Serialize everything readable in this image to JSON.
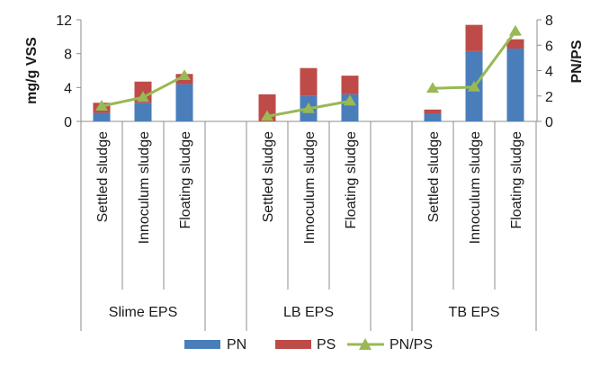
{
  "chart_data": {
    "type": "bar",
    "stacked": true,
    "groups": [
      {
        "label": "Slime EPS",
        "categories": [
          "Settled sludge",
          "Innoculum sludge",
          "Floating sludge"
        ]
      },
      {
        "label": "LB EPS",
        "categories": [
          "Settled sludge",
          "Innoculum sludge",
          "Floating sludge"
        ]
      },
      {
        "label": "TB EPS",
        "categories": [
          "Settled sludge",
          "Innoculum sludge",
          "Floating sludge"
        ]
      }
    ],
    "series": [
      {
        "name": "PN",
        "axis": "left",
        "values": [
          1.0,
          2.2,
          4.4,
          0.0,
          3.0,
          3.2,
          0.9,
          8.3,
          8.6
        ]
      },
      {
        "name": "PS",
        "axis": "left",
        "values": [
          1.2,
          2.5,
          1.2,
          3.2,
          3.3,
          2.2,
          0.5,
          3.1,
          1.1
        ]
      },
      {
        "name": "PN/PS",
        "axis": "right",
        "type": "line",
        "values": [
          1.2,
          1.9,
          3.6,
          0.4,
          1.0,
          1.6,
          2.6,
          2.7,
          7.1
        ]
      }
    ],
    "ylabel_left": "mg/g VSS",
    "ylabel_right": "PN/PS",
    "ylim_left": [
      0,
      12
    ],
    "yticks_left": [
      "0",
      "4",
      "8",
      "12"
    ],
    "ylim_right": [
      0,
      8
    ],
    "yticks_right": [
      "0",
      "2",
      "4",
      "6",
      "8"
    ],
    "legend_position": "bottom",
    "grid": false,
    "colors": {
      "PN": "#4a7ebb",
      "PS": "#be4b48",
      "PN/PS": "#98b954"
    }
  }
}
